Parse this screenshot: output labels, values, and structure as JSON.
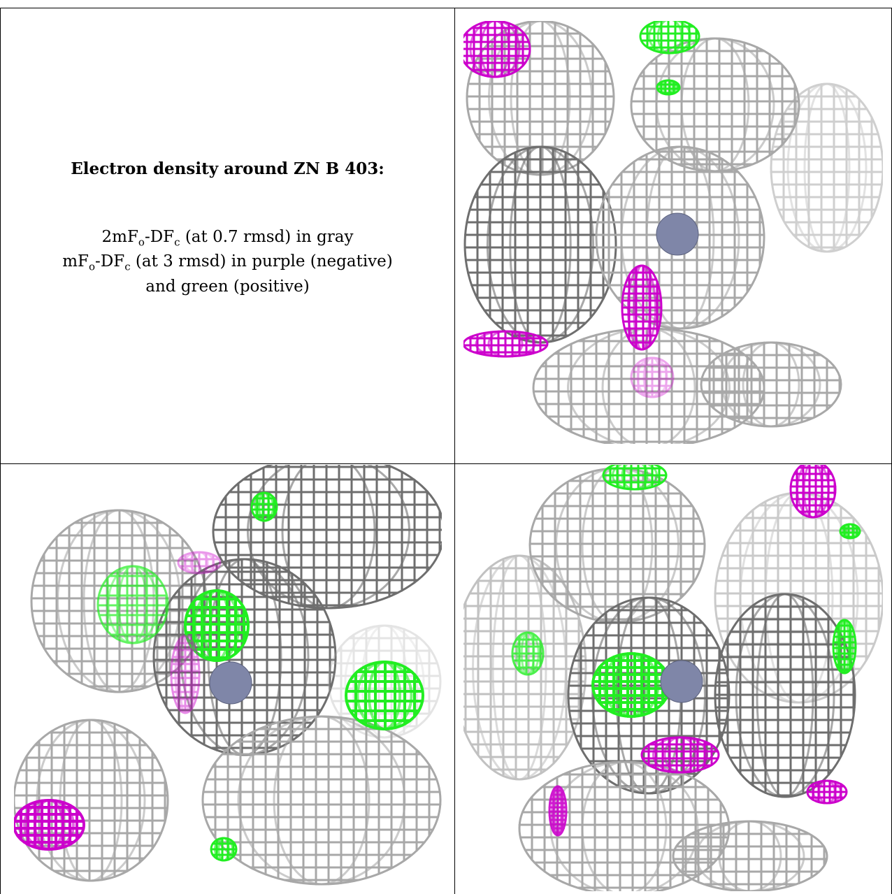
{
  "caption": {
    "title": "Electron density around ZN B 403:",
    "line1_pre": "2mF",
    "line1_sub1": "o",
    "line1_mid": "-DF",
    "line1_sub2": "c",
    "line1_post": " (at 0.7 rmsd) in gray",
    "line2_pre": "mF",
    "line2_sub1": "o",
    "line2_mid": "-DF",
    "line2_sub2": "c",
    "line2_post": " (at 3 rmsd) in purple (negative)",
    "line3": "and green (positive)"
  },
  "colors": {
    "gray_mesh": "#a8a8a8",
    "gray_mesh_dark": "#6e6e6e",
    "purple_negative": "#cc00cc",
    "green_positive": "#22ee22",
    "zinc_atom": "#7f86a8"
  },
  "panels": [
    {
      "name": "view-top-right",
      "atom": "ZN"
    },
    {
      "name": "view-bottom-left",
      "atom": "ZN"
    },
    {
      "name": "view-bottom-right",
      "atom": "ZN"
    }
  ]
}
